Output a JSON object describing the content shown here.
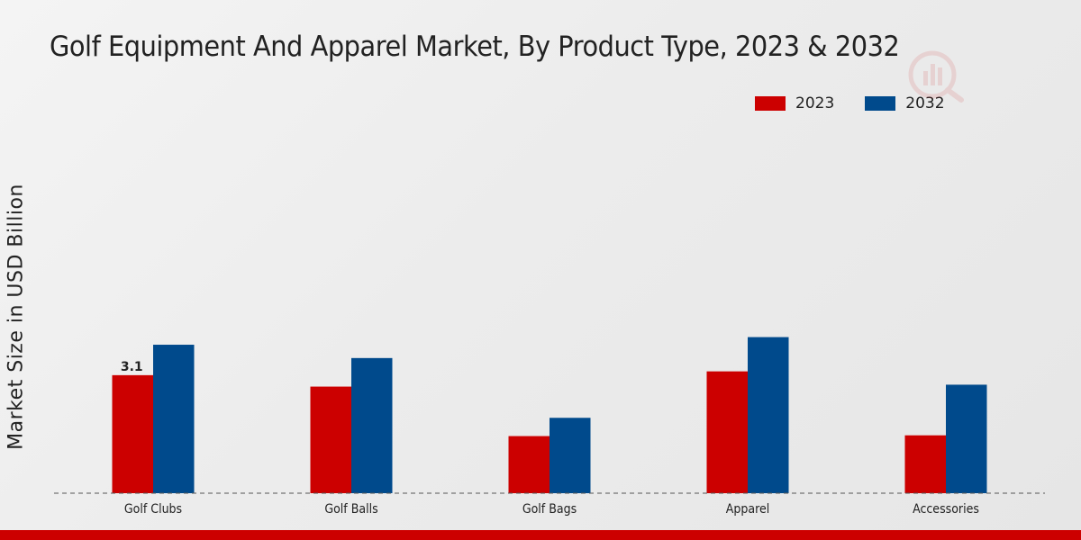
{
  "chart_data": {
    "type": "bar",
    "title": "Golf Equipment And Apparel Market, By Product Type, 2023 & 2032",
    "xlabel": "",
    "ylabel": "Market Size in USD Billion",
    "categories": [
      "Golf Clubs",
      "Golf Balls",
      "Golf Bags",
      "Apparel",
      "Accessories"
    ],
    "series": [
      {
        "name": "2023",
        "color": "#cc0000",
        "values": [
          3.1,
          2.8,
          1.5,
          3.2,
          1.52
        ]
      },
      {
        "name": "2032",
        "color": "#004a8c",
        "values": [
          3.9,
          3.55,
          1.98,
          4.1,
          2.85
        ]
      }
    ],
    "data_labels": [
      {
        "series": "2023",
        "category": "Golf Clubs",
        "text": "3.1"
      }
    ],
    "ylim": [
      0,
      10
    ],
    "grid": false,
    "legend_position": "top-right"
  }
}
